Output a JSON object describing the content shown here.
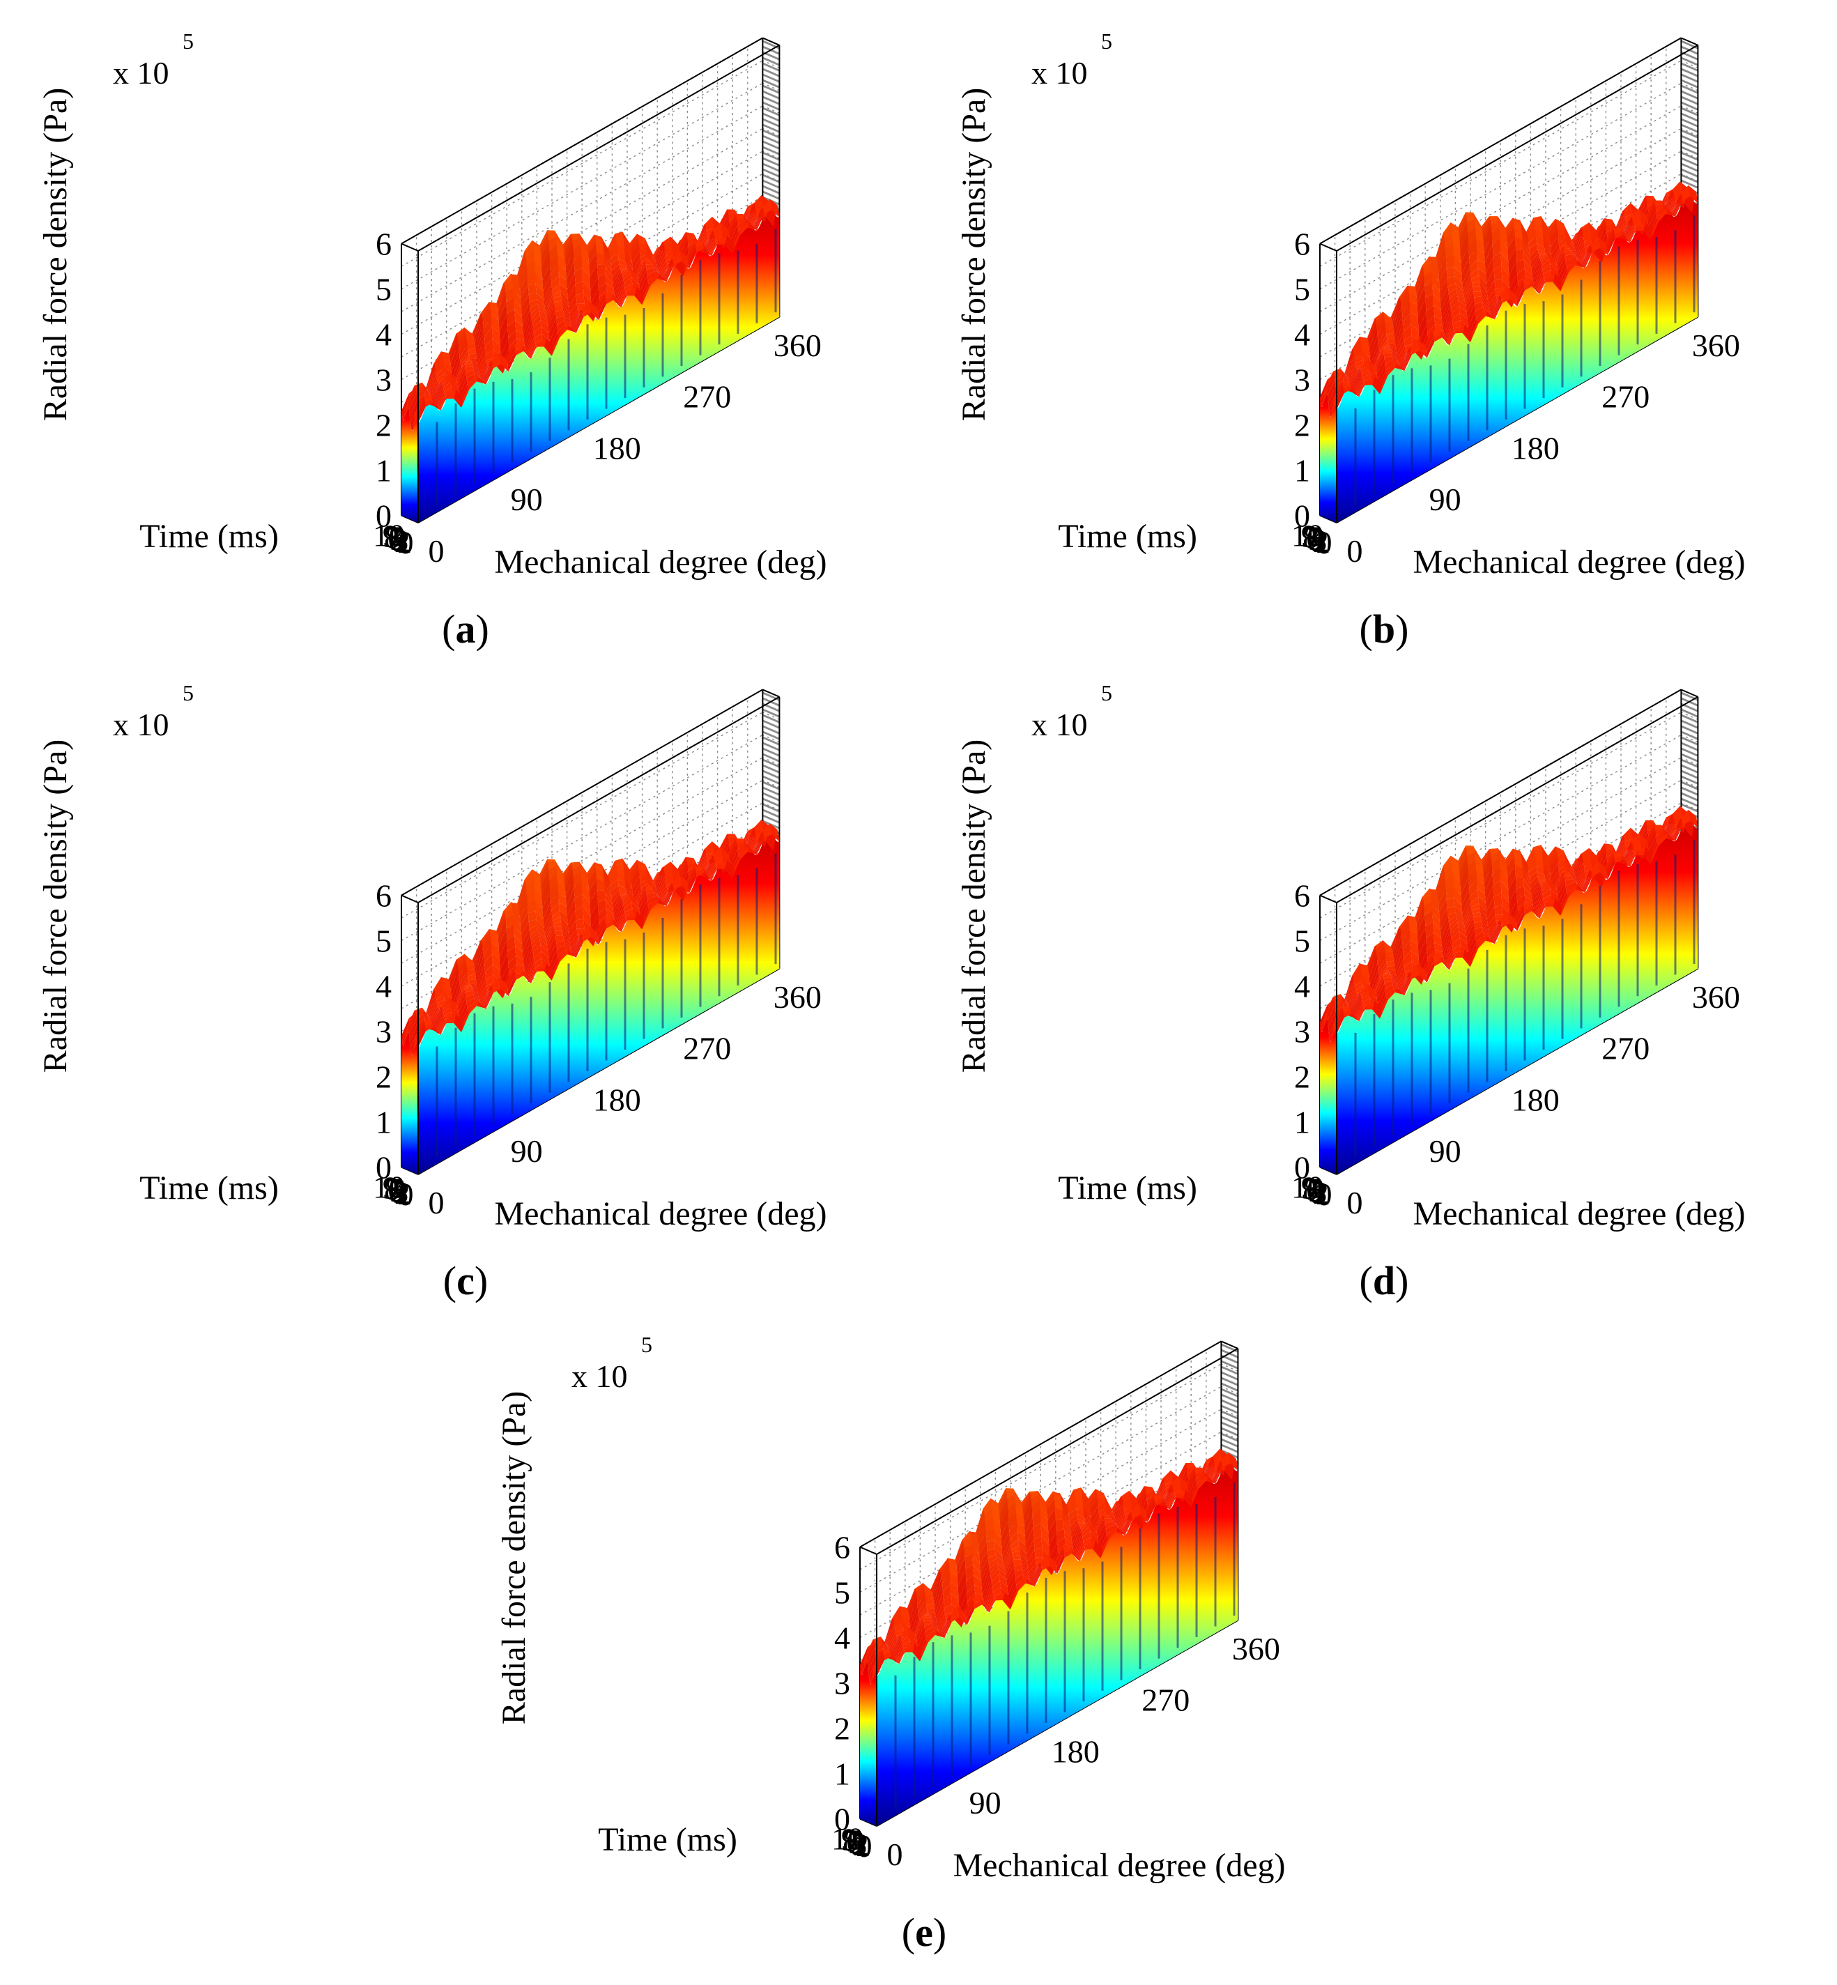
{
  "figure": {
    "panels": [
      "(a)",
      "(b)",
      "(c)",
      "(d)",
      "(e)"
    ]
  },
  "chart_data": [
    {
      "panel": "(a)",
      "type": "surface3d",
      "zlabel": "Radial force density (Pa)",
      "xlabel": "Mechanical degree (deg)",
      "ylabel": "Time (ms)",
      "z_multiplier": "x 10",
      "z_multiplier_exp": "5",
      "x_ticks": [
        "0",
        "90",
        "180",
        "270",
        "360"
      ],
      "y_ticks": [
        "0",
        "1",
        "2",
        "3",
        "4",
        "5",
        "6",
        "7",
        "8",
        "9",
        "10"
      ],
      "z_ticks": [
        "0",
        "1",
        "2",
        "3",
        "4",
        "5",
        "6"
      ],
      "xlim": [
        0,
        360
      ],
      "ylim": [
        0,
        10
      ],
      "zlim": [
        0,
        6
      ],
      "plateau_z": 2.2,
      "peak_z": 4.5,
      "peaks_along_degree": 16,
      "colormap": [
        "#00008f",
        "#0000ff",
        "#00ffff",
        "#ffff00",
        "#ff0000",
        "#c80000"
      ],
      "grid": true
    },
    {
      "panel": "(b)",
      "type": "surface3d",
      "zlabel": "Radial force density (Pa)",
      "xlabel": "Mechanical degree (deg)",
      "ylabel": "Time (ms)",
      "z_multiplier": "x 10",
      "z_multiplier_exp": "5",
      "x_ticks": [
        "0",
        "90",
        "180",
        "270",
        "360"
      ],
      "y_ticks": [
        "0",
        "1",
        "2",
        "3",
        "4",
        "5",
        "6",
        "7",
        "8",
        "9",
        "10"
      ],
      "z_ticks": [
        "0",
        "1",
        "2",
        "3",
        "4",
        "5",
        "6"
      ],
      "xlim": [
        0,
        360
      ],
      "ylim": [
        0,
        10
      ],
      "zlim": [
        0,
        6
      ],
      "plateau_z": 2.5,
      "peak_z": 4.9,
      "peaks_along_degree": 16,
      "colormap": [
        "#00008f",
        "#0000ff",
        "#00ffff",
        "#ffff00",
        "#ff0000",
        "#c80000"
      ],
      "grid": true
    },
    {
      "panel": "(c)",
      "type": "surface3d",
      "zlabel": "Radial force density (Pa)",
      "xlabel": "Mechanical degree (deg)",
      "ylabel": "Time (ms)",
      "z_multiplier": "x 10",
      "z_multiplier_exp": "5",
      "x_ticks": [
        "0",
        "90",
        "180",
        "270",
        "360"
      ],
      "y_ticks": [
        "0",
        "1",
        "2",
        "3",
        "4",
        "5",
        "6",
        "7",
        "8",
        "9",
        "10"
      ],
      "z_ticks": [
        "0",
        "1",
        "2",
        "3",
        "4",
        "5",
        "6"
      ],
      "xlim": [
        0,
        360
      ],
      "ylim": [
        0,
        10
      ],
      "zlim": [
        0,
        6
      ],
      "plateau_z": 2.8,
      "peak_z": 5.0,
      "peaks_along_degree": 16,
      "colormap": [
        "#00008f",
        "#0000ff",
        "#00ffff",
        "#ffff00",
        "#ff0000",
        "#c80000"
      ],
      "grid": true
    },
    {
      "panel": "(d)",
      "type": "surface3d",
      "zlabel": "Radial force density (Pa)",
      "xlabel": "Mechanical degree (deg)",
      "ylabel": "Time (ms)",
      "z_multiplier": "x 10",
      "z_multiplier_exp": "5",
      "x_ticks": [
        "0",
        "90",
        "180",
        "270",
        "360"
      ],
      "y_ticks": [
        "0",
        "1",
        "2",
        "3",
        "4",
        "5",
        "6",
        "7",
        "8",
        "9",
        "10"
      ],
      "z_ticks": [
        "0",
        "1",
        "2",
        "3",
        "4",
        "5",
        "6"
      ],
      "xlim": [
        0,
        360
      ],
      "ylim": [
        0,
        10
      ],
      "zlim": [
        0,
        6
      ],
      "plateau_z": 3.1,
      "peak_z": 5.3,
      "peaks_along_degree": 16,
      "colormap": [
        "#00008f",
        "#0000ff",
        "#00ffff",
        "#ffff00",
        "#ff0000",
        "#c80000"
      ],
      "grid": true
    },
    {
      "panel": "(e)",
      "type": "surface3d",
      "zlabel": "Radial force density (Pa)",
      "xlabel": "Mechanical degree (deg)",
      "ylabel": "Time (ms)",
      "z_multiplier": "x 10",
      "z_multiplier_exp": "5",
      "x_ticks": [
        "0",
        "90",
        "180",
        "270",
        "360"
      ],
      "y_ticks": [
        "0",
        "1",
        "2",
        "3",
        "4",
        "5",
        "6",
        "7",
        "8",
        "9",
        "10"
      ],
      "z_ticks": [
        "0",
        "1",
        "2",
        "3",
        "4",
        "5",
        "6"
      ],
      "xlim": [
        0,
        360
      ],
      "ylim": [
        0,
        10
      ],
      "zlim": [
        0,
        6
      ],
      "plateau_z": 3.3,
      "peak_z": 5.5,
      "peaks_along_degree": 16,
      "colormap": [
        "#00008f",
        "#0000ff",
        "#00ffff",
        "#ffff00",
        "#ff0000",
        "#c80000"
      ],
      "grid": true
    }
  ]
}
